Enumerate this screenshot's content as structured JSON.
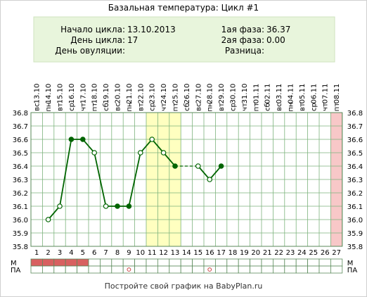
{
  "header": {
    "title": "Базальная температура: Цикл #1",
    "left_rows": [
      {
        "label": "Начало цикла:",
        "value": "13.10.2013"
      },
      {
        "label": "День цикла:",
        "value": "17"
      },
      {
        "label": "День овуляции:",
        "value": ""
      }
    ],
    "right_rows": [
      {
        "label": "1ая фаза:",
        "value": "36.37"
      },
      {
        "label": "2ая фаза:",
        "value": "0.00"
      },
      {
        "label": "Разница:",
        "value": ""
      }
    ]
  },
  "footer": {
    "text": "Постройте свой график на BabyPlan.ru"
  },
  "colors": {
    "line": "#006400",
    "grid": "#7db37d",
    "highlight_yellow": "#ffffc0",
    "highlight_pink": "#f8c8c8",
    "header_bg": "#e8f5dc",
    "menses": "#d86060",
    "ovulation_marker": "#cc4444"
  },
  "chart_data": {
    "type": "line",
    "ylim": [
      35.8,
      36.8
    ],
    "y_ticks": [
      "36.8",
      "36.7",
      "36.6",
      "36.5",
      "36.4",
      "36.3",
      "36.2",
      "36.1",
      "36.0",
      "35.9",
      "35.8"
    ],
    "days": [
      1,
      2,
      3,
      4,
      5,
      6,
      7,
      8,
      9,
      10,
      11,
      12,
      13,
      14,
      15,
      16,
      17,
      18,
      19,
      20,
      21,
      22,
      23,
      24,
      25,
      26,
      27
    ],
    "dates": [
      "13.10",
      "14.10",
      "15.10",
      "16.10",
      "17.10",
      "18.10",
      "19.10",
      "20.10",
      "21.10",
      "22.10",
      "23.10",
      "24.10",
      "25.10",
      "26.10",
      "27.10",
      "28.10",
      "29.10",
      "30.10",
      "31.10",
      "01.11",
      "02.11",
      "03.11",
      "04.11",
      "05.11",
      "06.11",
      "07.11",
      "08.11"
    ],
    "weekdays": [
      "вс",
      "пн",
      "вт",
      "ср",
      "чт",
      "пт",
      "сб",
      "вс",
      "пн",
      "вт",
      "ср",
      "чт",
      "пт",
      "сб",
      "вс",
      "пн",
      "вт",
      "ср",
      "чт",
      "пт",
      "сб",
      "вс",
      "пн",
      "вт",
      "ср",
      "чт",
      "пт"
    ],
    "temperatures": [
      null,
      36.0,
      36.1,
      36.6,
      36.6,
      36.5,
      36.1,
      36.1,
      36.1,
      36.5,
      36.6,
      36.5,
      36.4,
      null,
      36.4,
      36.3,
      36.4,
      null,
      null,
      null,
      null,
      null,
      null,
      null,
      null,
      null,
      null
    ],
    "filled_points": [
      4,
      5,
      8,
      9,
      13,
      17
    ],
    "dashed_segments": [
      [
        13,
        15
      ]
    ],
    "highlight_yellow_days": [
      11,
      12,
      13
    ],
    "highlight_pink_days": [
      27
    ],
    "row_m_label": "М",
    "row_pa_label": "ПА",
    "menses_days": [
      1,
      2,
      3,
      4,
      5
    ],
    "pa_marker_days": [
      9,
      16
    ]
  }
}
